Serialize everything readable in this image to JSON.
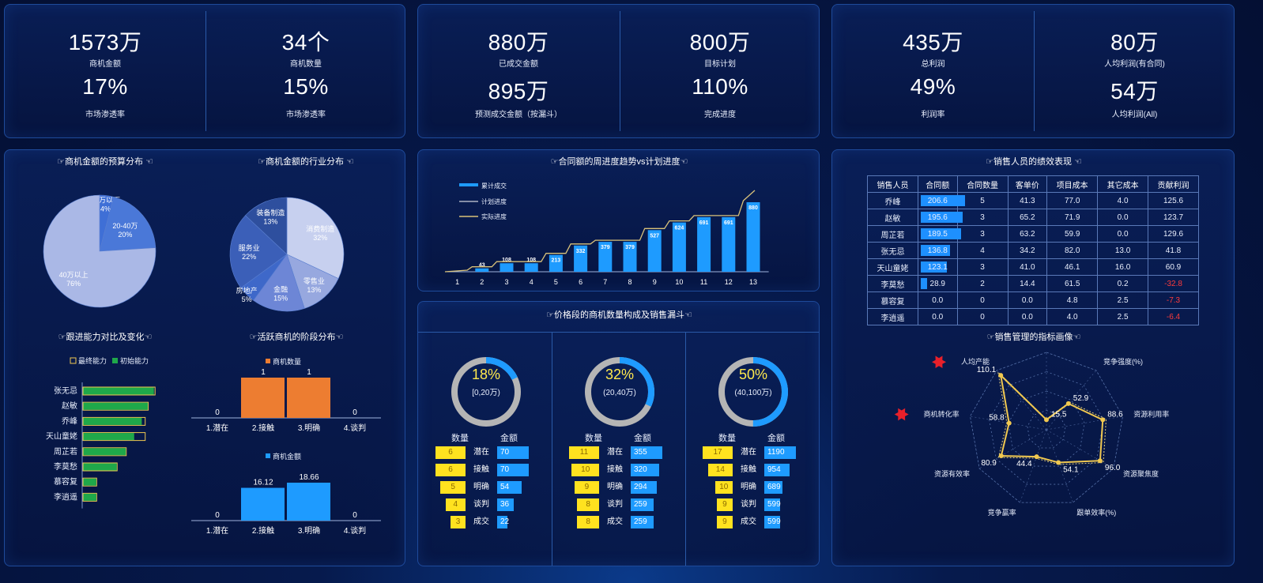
{
  "kpis": {
    "panel1": {
      "left": {
        "v1": "1573万",
        "l1": "商机金额",
        "v2": "17%",
        "l2": "市场渗透率"
      },
      "right": {
        "v1": "34个",
        "l1": "商机数量",
        "v2": "15%",
        "l2": "市场渗透率"
      }
    },
    "panel2": {
      "left": {
        "v1": "880万",
        "l1": "已成交金额",
        "v2": "895万",
        "l2": "预测成交金额（按漏斗）"
      },
      "right": {
        "v1": "800万",
        "l1": "目标计划",
        "v2": "110%",
        "l2": "完成进度"
      }
    },
    "panel3": {
      "left": {
        "v1": "435万",
        "l1": "总利润",
        "v2": "49%",
        "l2": "利润率"
      },
      "right": {
        "v1": "80万",
        "l1": "人均利润(有合同)",
        "v2": "54万",
        "l2": "人均利润(All)"
      }
    }
  },
  "titles": {
    "budget": "☞商机金额的预算分布 ☜",
    "industry": "☞商机金额的行业分布 ☜",
    "ability": "☞跟进能力对比及变化☜",
    "stage": "☞活跃商机的阶段分布☜",
    "trend": "☞合同额的周进度趋势vs计划进度☜",
    "funnel": "☞价格段的商机数量构成及销售漏斗☜",
    "perf": "☞销售人员的绩效表现 ☜",
    "radar": "☞销售管理的指标画像☜"
  },
  "colors": {
    "blue": "#1e9bff",
    "orange": "#ed7d31",
    "yellow": "#ffe21f",
    "gold": "#f0c850",
    "green": "#1fa84a"
  },
  "chart_data": [
    {
      "type": "pie",
      "id": "budget",
      "slices": [
        {
          "name": "20万以下",
          "value": 4,
          "pct": "4%",
          "color": "#3f6fd6"
        },
        {
          "name": "20-40万",
          "value": 20,
          "pct": "20%",
          "color": "#4a78d8"
        },
        {
          "name": "40万以上",
          "value": 76,
          "pct": "76%",
          "color": "#aab8e6"
        }
      ]
    },
    {
      "type": "pie",
      "id": "industry",
      "slices": [
        {
          "name": "消费制造",
          "value": 32,
          "pct": "32%",
          "color": "#c7d0ef"
        },
        {
          "name": "零售业",
          "value": 13,
          "pct": "13%",
          "color": "#97a8df"
        },
        {
          "name": "金融",
          "value": 15,
          "pct": "15%",
          "color": "#6d86d6"
        },
        {
          "name": "房地产",
          "value": 5,
          "pct": "5%",
          "color": "#3e68c9"
        },
        {
          "name": "服务业",
          "value": 22,
          "pct": "22%",
          "color": "#3b5fb8"
        },
        {
          "name": "装备制造",
          "value": 13,
          "pct": "13%",
          "color": "#2e4f9e"
        }
      ]
    },
    {
      "type": "bar",
      "id": "ability",
      "legend": [
        "最终能力",
        "初始能力"
      ],
      "categories": [
        "张无忌",
        "赵敏",
        "乔峰",
        "天山童姥",
        "周芷若",
        "李莫愁",
        "慕容复",
        "李逍遥"
      ],
      "series": [
        {
          "name": "最终能力",
          "values": [
            95,
            86,
            82,
            82,
            57,
            45,
            18,
            18
          ]
        },
        {
          "name": "初始能力",
          "values": [
            94,
            86,
            78,
            68,
            57,
            45,
            18,
            18
          ]
        }
      ],
      "xlim": [
        0,
        100
      ]
    },
    {
      "type": "bar",
      "id": "stage_count",
      "legend": "商机数量",
      "categories": [
        "1.潜在",
        "2.接触",
        "3.明确",
        "4.谈判"
      ],
      "values": [
        0,
        1,
        1,
        0
      ],
      "labels": [
        "0",
        "1",
        "1",
        "0"
      ],
      "ylim": [
        0,
        1
      ]
    },
    {
      "type": "bar",
      "id": "stage_amount",
      "legend": "商机金额",
      "categories": [
        "1.潜在",
        "2.接触",
        "3.明确",
        "4.谈判"
      ],
      "values": [
        0,
        16.12,
        18.66,
        0
      ],
      "labels": [
        "0",
        "16.12",
        "18.66",
        "0"
      ],
      "ylim": [
        0,
        18.66
      ]
    },
    {
      "type": "bar",
      "id": "trend",
      "legend": [
        "累计成交",
        "计划进度",
        "实际进度"
      ],
      "categories": [
        "1",
        "2",
        "3",
        "4",
        "5",
        "6",
        "7",
        "8",
        "9",
        "10",
        "11",
        "12",
        "13"
      ],
      "series": [
        {
          "name": "累计成交",
          "values": [
            0,
            43,
            108,
            108,
            213,
            332,
            379,
            379,
            527,
            624,
            691,
            691,
            880
          ],
          "labels": [
            "",
            "43",
            "108",
            "108",
            "213",
            "332",
            "379",
            "379",
            "527",
            "624",
            "691",
            "691",
            "880"
          ]
        },
        {
          "name": "实际进度",
          "values": [
            0,
            43,
            108,
            108,
            213,
            332,
            379,
            379,
            527,
            624,
            691,
            691,
            880
          ]
        }
      ],
      "ylim": [
        0,
        1000
      ]
    },
    {
      "type": "table",
      "id": "perf",
      "columns": [
        "销售人员",
        "合同额",
        "合同数量",
        "客单价",
        "项目成本",
        "其它成本",
        "贡献利润"
      ],
      "rows": [
        [
          "乔峰",
          "206.6",
          "5",
          "41.3",
          "77.0",
          "4.0",
          "125.6"
        ],
        [
          "赵敏",
          "195.6",
          "3",
          "65.2",
          "71.9",
          "0.0",
          "123.7"
        ],
        [
          "周芷若",
          "189.5",
          "3",
          "63.2",
          "59.9",
          "0.0",
          "129.6"
        ],
        [
          "张无忌",
          "136.8",
          "4",
          "34.2",
          "82.0",
          "13.0",
          "41.8"
        ],
        [
          "天山童姥",
          "123.1",
          "3",
          "41.0",
          "46.1",
          "16.0",
          "60.9"
        ],
        [
          "李莫愁",
          "28.9",
          "2",
          "14.4",
          "61.5",
          "0.2",
          "-32.8"
        ],
        [
          "慕容复",
          "0.0",
          "0",
          "0.0",
          "4.8",
          "2.5",
          "-7.3"
        ],
        [
          "李逍遥",
          "0.0",
          "0",
          "0.0",
          "4.0",
          "2.5",
          "-6.4"
        ]
      ],
      "contract_max": 206.6
    },
    {
      "type": "radar",
      "id": "radar",
      "axes": [
        "市场覆盖率",
        "竞争强度(%)",
        "资源利用率",
        "资源聚焦度",
        "跟单效率(%)",
        "竞争赢率",
        "资源有效率",
        "商机转化率",
        "人均产能"
      ],
      "values": [
        15.5,
        52.9,
        88.6,
        96.0,
        54.1,
        44.4,
        80.9,
        58.8,
        110.1
      ],
      "labels": [
        "15.5",
        "52.9",
        "88.6",
        "96.0",
        "54.1",
        "44.4",
        "80.9",
        "58.8",
        "110.1"
      ],
      "max": 120,
      "flagged": [
        "人均产能",
        "商机转化率"
      ]
    }
  ],
  "funnel": {
    "head_qty": "数量",
    "head_amt": "金额",
    "stages": [
      "潜在",
      "接触",
      "明确",
      "谈判",
      "成交"
    ],
    "segments": [
      {
        "pct": "18%",
        "pct_value": 18,
        "range": "[0,20万)",
        "qty": [
          "6",
          "6",
          "5",
          "4",
          "3"
        ],
        "qtyv": [
          6,
          6,
          5,
          4,
          3
        ],
        "amt": [
          "70",
          "70",
          "54",
          "36",
          "22"
        ],
        "amtv": [
          70,
          70,
          54,
          36,
          22
        ],
        "maxq": 6,
        "maxa": 70
      },
      {
        "pct": "32%",
        "pct_value": 32,
        "range": "(20,40万)",
        "qty": [
          "11",
          "10",
          "9",
          "8",
          "8"
        ],
        "qtyv": [
          11,
          10,
          9,
          8,
          8
        ],
        "amt": [
          "355",
          "320",
          "294",
          "259",
          "259"
        ],
        "amtv": [
          355,
          320,
          294,
          259,
          259
        ],
        "maxq": 11,
        "maxa": 355
      },
      {
        "pct": "50%",
        "pct_value": 50,
        "range": "(40,100万)",
        "qty": [
          "17",
          "14",
          "10",
          "9",
          "9"
        ],
        "qtyv": [
          17,
          14,
          10,
          9,
          9
        ],
        "amt": [
          "1190",
          "954",
          "689",
          "599",
          "599"
        ],
        "amtv": [
          1190,
          954,
          689,
          599,
          599
        ],
        "maxq": 17,
        "maxa": 1190
      }
    ]
  }
}
